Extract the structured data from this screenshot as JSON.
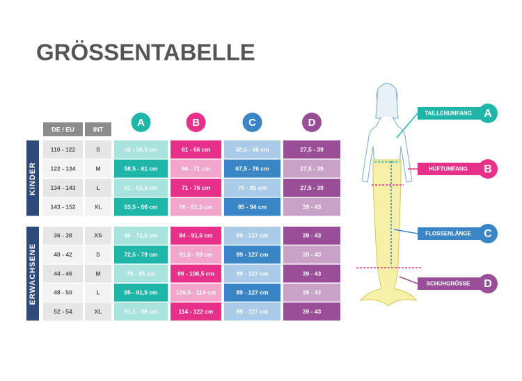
{
  "title": "GRÖSSENTABELLE",
  "table": {
    "header": {
      "size": "DE / EU",
      "int": "INT",
      "columns": [
        "A",
        "B",
        "C",
        "D"
      ]
    },
    "groups": [
      {
        "label": "KINDER",
        "rows": [
          [
            "110 - 122",
            "S",
            "56 - 58,5 cm",
            "61 - 66 cm",
            "58,5 - 66 cm",
            "27,5 - 39"
          ],
          [
            "122 - 134",
            "M",
            "58,5 - 61 cm",
            "66 - 71 cm",
            "67,5 - 76 cm",
            "27,5 - 39"
          ],
          [
            "134 - 143",
            "L",
            "61 - 63,5 cm",
            "71 - 76 cm",
            "76 - 85 cm",
            "27,5 - 39"
          ],
          [
            "143 - 152",
            "XL",
            "63,5 - 66 cm",
            "76 - 81,5 cm",
            "85 - 94 cm",
            "39 - 43"
          ]
        ]
      },
      {
        "label": "ERWACHSENE",
        "rows": [
          [
            "36 - 38",
            "XS",
            "66 - 72,5 cm",
            "84 - 91,5 cm",
            "89 - 127 cm",
            "39 - 43"
          ],
          [
            "40 - 42",
            "S",
            "72,5 - 79 cm",
            "91,5 - 99 cm",
            "89 - 127 cm",
            "39 - 43"
          ],
          [
            "44 - 46",
            "M",
            "79 - 85 cm",
            "99 - 106,5 cm",
            "89 - 127 cm",
            "39 - 43"
          ],
          [
            "48 - 50",
            "L",
            "85 - 91,5 cm",
            "106,5 - 114 cm",
            "89 - 127 cm",
            "39 - 43"
          ],
          [
            "52 - 54",
            "XL",
            "91,5 - 98 cm",
            "114 - 122 cm",
            "89 - 127 cm",
            "39 - 43"
          ]
        ]
      }
    ]
  },
  "legend": [
    {
      "label": "TAILLENUMFANG",
      "letter": "A"
    },
    {
      "label": "HÜFTUMFANG",
      "letter": "B"
    },
    {
      "label": "FLOSSENLÄNGE",
      "letter": "C"
    },
    {
      "label": "SCHUHGRÖSSE",
      "letter": "D"
    }
  ]
}
